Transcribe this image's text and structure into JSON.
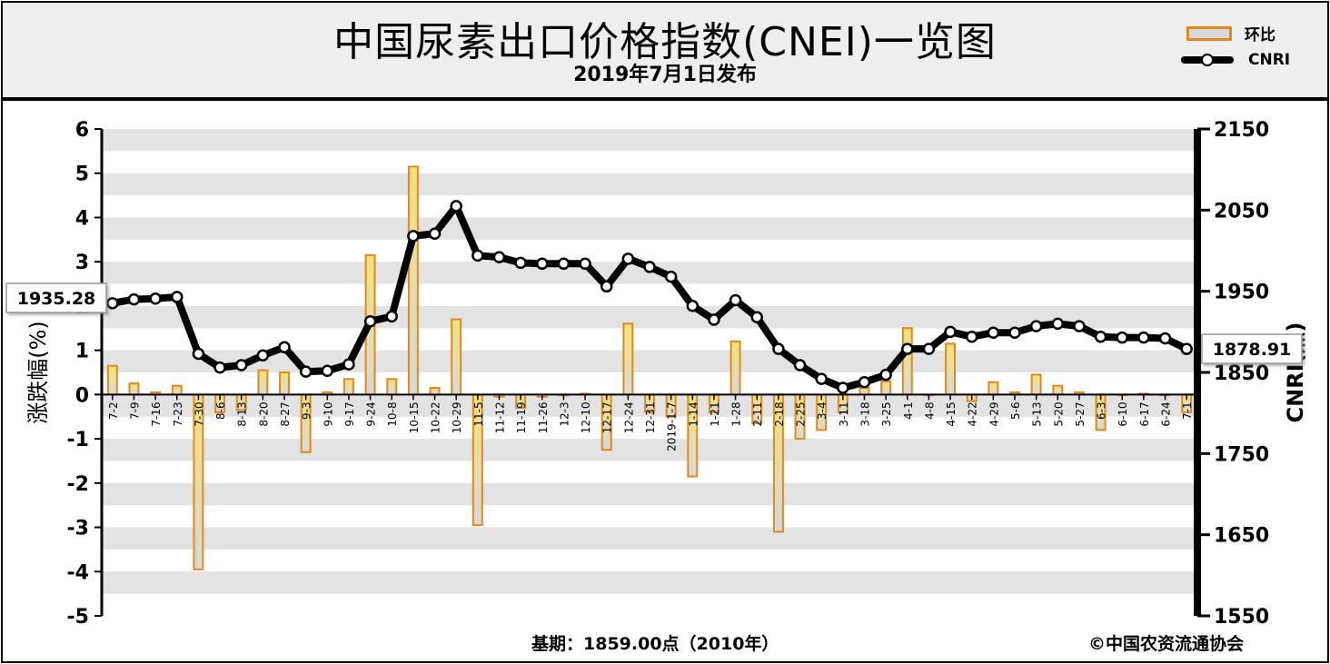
{
  "header": {
    "title": "中国尿素出口价格指数(CNEI)一览图",
    "subtitle": "2019年7月1日发布"
  },
  "legend": {
    "bar_label": "环比",
    "line_label": "CNRI"
  },
  "footer": {
    "base_period": "基期：1859.00点（2010年）",
    "copyright": "©中国农资流通协会"
  },
  "callouts": {
    "start_value": "1935.28",
    "end_value": "1878.91"
  },
  "colors": {
    "bar_fill_top": "#f5e27a",
    "bar_fill_bottom": "#d9d9d9",
    "bar_border": "#e08a1e",
    "line": "#000000",
    "band": "#e3e3e3"
  },
  "chart_data": {
    "type": "bar+line",
    "categories": [
      "7-2",
      "7-9",
      "7-16",
      "7-23",
      "7-30",
      "8-6",
      "8-13",
      "8-20",
      "8-27",
      "9-3",
      "9-10",
      "9-17",
      "9-24",
      "10-8",
      "10-15",
      "10-22",
      "10-29",
      "11-5",
      "11-12",
      "11-19",
      "11-26",
      "12-3",
      "12-10",
      "12-17",
      "12-24",
      "12-31",
      "2019-1-7",
      "1-14",
      "1-21",
      "1-28",
      "2-11",
      "2-18",
      "2-25",
      "3-4",
      "3-11",
      "3-18",
      "3-25",
      "4-1",
      "4-8",
      "4-15",
      "4-22",
      "4-29",
      "5-6",
      "5-13",
      "5-20",
      "5-27",
      "6-3",
      "6-10",
      "6-17",
      "6-24",
      "7-1"
    ],
    "series": [
      {
        "name": "环比",
        "type": "bar",
        "axis": "left",
        "values": [
          0.65,
          0.25,
          0.05,
          0.2,
          -3.95,
          -0.4,
          -0.35,
          0.55,
          0.5,
          -1.3,
          0.05,
          0.35,
          3.15,
          0.35,
          5.15,
          0.15,
          1.7,
          -2.95,
          -0.05,
          -0.3,
          -0.05,
          0.0,
          0.02,
          -1.25,
          1.6,
          -0.4,
          -0.5,
          -1.85,
          -0.4,
          1.2,
          -0.65,
          -3.1,
          -1.0,
          -0.8,
          -0.4,
          0.15,
          0.3,
          1.5,
          0.0,
          1.15,
          -0.15,
          0.28,
          0.05,
          0.45,
          0.2,
          0.05,
          -0.8,
          0.0,
          0.02,
          0.0,
          -0.4
        ]
      },
      {
        "name": "CNRI",
        "type": "line",
        "axis": "right",
        "values": [
          1935.28,
          1940,
          1941,
          1943,
          1873,
          1856,
          1859,
          1871,
          1881,
          1851,
          1852,
          1860,
          1913,
          1919,
          2018,
          2021,
          2055,
          1994,
          1992,
          1985,
          1984,
          1984,
          1984,
          1956,
          1990,
          1980,
          1968,
          1932,
          1915,
          1939,
          1918,
          1879,
          1859,
          1842,
          1831,
          1838,
          1847,
          1879,
          1879,
          1900,
          1894,
          1899,
          1899,
          1907,
          1910,
          1907,
          1894,
          1893,
          1893,
          1892,
          1878.91
        ]
      }
    ],
    "ylabel_left": "涨跌幅(%)",
    "ylabel_right": "CNRI(点)",
    "yticks_left": [
      "6",
      "5",
      "4",
      "3",
      "2",
      "1",
      "0",
      "-1",
      "-2",
      "-3",
      "-4",
      "-5"
    ],
    "yticks_right": [
      "2150",
      "2050",
      "1950",
      "1850",
      "1750",
      "1650",
      "1550"
    ],
    "ylim_left": [
      -5,
      6
    ],
    "ylim_right": [
      1550,
      2150
    ]
  }
}
